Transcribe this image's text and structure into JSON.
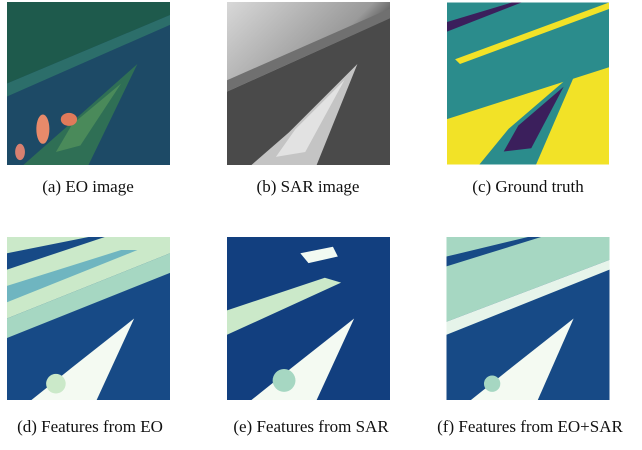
{
  "figure": {
    "panels": [
      {
        "caption": "(a) EO image"
      },
      {
        "caption": "(b) SAR image"
      },
      {
        "caption": "(c) Ground truth"
      },
      {
        "caption": "(d) Features from EO"
      },
      {
        "caption": "(e) Features from SAR"
      },
      {
        "caption": "(f) Features from EO+SAR"
      }
    ]
  }
}
